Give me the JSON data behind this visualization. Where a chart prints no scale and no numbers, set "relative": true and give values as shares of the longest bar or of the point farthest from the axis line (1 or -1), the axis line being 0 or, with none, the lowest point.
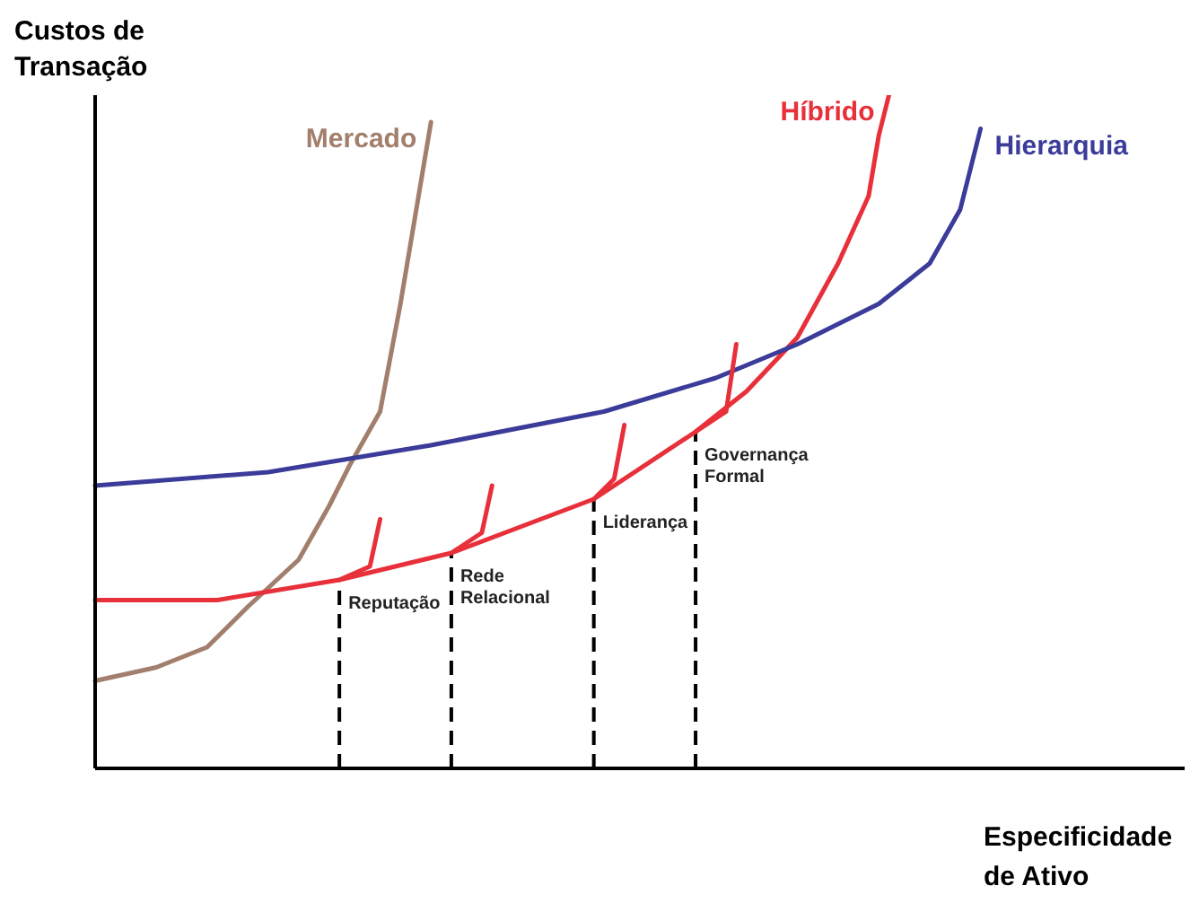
{
  "chart_data": {
    "type": "line",
    "relative": true,
    "xlabel": "Especificidade de Ativo",
    "ylabel": "Custos de Transação",
    "categories": [
      null,
      null,
      null,
      null,
      null,
      null,
      null,
      null,
      null,
      null,
      null,
      null,
      null,
      null,
      null,
      null,
      null,
      null,
      null,
      null,
      null,
      null,
      null,
      null,
      null,
      null,
      null,
      null,
      null,
      null,
      null,
      null,
      null,
      null,
      null,
      null,
      null,
      null,
      null,
      null,
      null,
      null,
      null,
      null,
      null,
      null,
      null,
      null,
      null,
      null,
      null,
      null,
      null,
      null,
      null,
      null,
      null,
      null,
      null,
      null,
      null,
      null,
      null,
      null,
      null,
      null,
      null,
      null,
      null,
      null,
      null,
      null,
      null,
      null,
      null,
      null,
      null,
      null,
      null,
      null,
      null,
      null,
      null,
      null,
      null,
      null,
      null,
      null,
      null,
      null,
      null,
      null,
      null,
      null,
      null,
      null,
      null,
      null,
      null,
      null,
      null
    ],
    "series": [
      {
        "name": "Mercado",
        "color": "#a27e6c",
        "values": [
          0.13,
          null,
          null,
          null,
          null,
          null,
          0.15,
          null,
          null,
          null,
          null,
          0.18,
          null,
          null,
          null,
          0.24,
          null,
          null,
          null,
          null,
          0.31,
          null,
          null,
          0.39,
          null,
          0.45,
          null,
          null,
          0.53,
          0.61,
          0.69,
          0.78,
          0.87,
          0.96,
          null,
          null,
          null,
          null,
          null,
          null,
          null,
          null,
          null,
          null,
          null,
          null,
          null,
          null,
          null,
          null,
          null,
          null,
          null,
          null,
          null,
          null,
          null,
          null,
          null,
          null,
          null,
          null,
          null,
          null,
          null,
          null,
          null,
          null,
          null,
          null,
          null,
          null,
          null,
          null,
          null,
          null,
          null,
          null,
          null,
          null,
          null,
          null,
          null,
          null,
          null,
          null,
          null,
          null,
          null,
          null,
          null,
          null,
          null,
          null,
          null,
          null,
          null,
          null,
          null,
          null,
          null
        ]
      },
      {
        "name": "Híbrido",
        "color": "#e8303a",
        "values": [
          0.25,
          null,
          null,
          null,
          null,
          null,
          null,
          null,
          null,
          null,
          null,
          null,
          0.25,
          null,
          null,
          null,
          null,
          null,
          null,
          null,
          null,
          null,
          null,
          null,
          0.28,
          null,
          null,
          null,
          null,
          null,
          null,
          null,
          null,
          null,
          null,
          0.32,
          null,
          null,
          null,
          null,
          null,
          null,
          null,
          null,
          null,
          null,
          null,
          null,
          null,
          0.4,
          null,
          null,
          null,
          null,
          null,
          null,
          null,
          null,
          null,
          0.5,
          null,
          null,
          null,
          null,
          0.56,
          null,
          null,
          null,
          null,
          0.64,
          null,
          null,
          null,
          0.75,
          null,
          null,
          0.85,
          0.94,
          1,
          null,
          null,
          null,
          null,
          null,
          null,
          null,
          null,
          null,
          null,
          null,
          null,
          null,
          null,
          null,
          null,
          null,
          null,
          null,
          null,
          null,
          null
        ]
      },
      {
        "name": "Hierarquia",
        "color": "#3b3b9a",
        "values": [
          0.42,
          null,
          null,
          null,
          null,
          null,
          null,
          null,
          null,
          null,
          null,
          null,
          null,
          null,
          null,
          null,
          null,
          0.44,
          null,
          null,
          null,
          null,
          null,
          null,
          null,
          null,
          null,
          null,
          null,
          null,
          null,
          null,
          null,
          0.48,
          null,
          null,
          null,
          null,
          null,
          null,
          null,
          null,
          null,
          null,
          null,
          null,
          null,
          null,
          null,
          null,
          0.53,
          null,
          null,
          null,
          null,
          null,
          null,
          null,
          null,
          null,
          null,
          0.58,
          null,
          null,
          null,
          null,
          null,
          null,
          null,
          0.63,
          null,
          null,
          null,
          null,
          null,
          null,
          null,
          0.69,
          null,
          null,
          null,
          null,
          0.75,
          null,
          null,
          0.83,
          null,
          0.95,
          null,
          null,
          null,
          null,
          null,
          null,
          null,
          null,
          null,
          null,
          null,
          null,
          null
        ]
      },
      {
        "color": "#e8303a",
        "values": [
          null,
          null,
          null,
          null,
          null,
          null,
          null,
          null,
          null,
          null,
          null,
          null,
          null,
          null,
          null,
          null,
          null,
          null,
          null,
          null,
          null,
          null,
          null,
          null,
          0.28,
          null,
          null,
          0.3,
          0.37,
          null,
          null,
          null,
          null,
          null,
          null,
          null,
          null,
          null,
          null,
          null,
          null,
          null,
          null,
          null,
          null,
          null,
          null,
          null,
          null,
          null,
          null,
          null,
          null,
          null,
          null,
          null,
          null,
          null,
          null,
          null,
          null,
          null,
          null,
          null,
          null,
          null,
          null,
          null,
          null,
          null,
          null,
          null,
          null,
          null,
          null,
          null,
          null,
          null,
          null,
          null,
          null,
          null,
          null,
          null,
          null,
          null,
          null,
          null,
          null,
          null,
          null,
          null,
          null,
          null,
          null,
          null,
          null,
          null,
          null,
          null,
          null
        ]
      },
      {
        "color": "#e8303a",
        "values": [
          null,
          null,
          null,
          null,
          null,
          null,
          null,
          null,
          null,
          null,
          null,
          null,
          null,
          null,
          null,
          null,
          null,
          null,
          null,
          null,
          null,
          null,
          null,
          null,
          null,
          null,
          null,
          null,
          null,
          null,
          null,
          null,
          null,
          null,
          null,
          0.32,
          null,
          null,
          0.35,
          0.42,
          null,
          null,
          null,
          null,
          null,
          null,
          null,
          null,
          null,
          null,
          null,
          null,
          null,
          null,
          null,
          null,
          null,
          null,
          null,
          null,
          null,
          null,
          null,
          null,
          null,
          null,
          null,
          null,
          null,
          null,
          null,
          null,
          null,
          null,
          null,
          null,
          null,
          null,
          null,
          null,
          null,
          null,
          null,
          null,
          null,
          null,
          null,
          null,
          null,
          null,
          null,
          null,
          null,
          null,
          null,
          null,
          null,
          null,
          null,
          null,
          null
        ]
      },
      {
        "color": "#e8303a",
        "values": [
          null,
          null,
          null,
          null,
          null,
          null,
          null,
          null,
          null,
          null,
          null,
          null,
          null,
          null,
          null,
          null,
          null,
          null,
          null,
          null,
          null,
          null,
          null,
          null,
          null,
          null,
          null,
          null,
          null,
          null,
          null,
          null,
          null,
          null,
          null,
          null,
          null,
          null,
          null,
          null,
          null,
          null,
          null,
          null,
          null,
          null,
          null,
          null,
          null,
          0.4,
          null,
          0.43,
          0.51,
          null,
          null,
          null,
          null,
          null,
          null,
          null,
          null,
          null,
          null,
          null,
          null,
          null,
          null,
          null,
          null,
          null,
          null,
          null,
          null,
          null,
          null,
          null,
          null,
          null,
          null,
          null,
          null,
          null,
          null,
          null,
          null,
          null,
          null,
          null,
          null,
          null,
          null,
          null,
          null,
          null,
          null,
          null,
          null,
          null,
          null,
          null,
          null
        ]
      },
      {
        "color": "#e8303a",
        "values": [
          null,
          null,
          null,
          null,
          null,
          null,
          null,
          null,
          null,
          null,
          null,
          null,
          null,
          null,
          null,
          null,
          null,
          null,
          null,
          null,
          null,
          null,
          null,
          null,
          null,
          null,
          null,
          null,
          null,
          null,
          null,
          null,
          null,
          null,
          null,
          null,
          null,
          null,
          null,
          null,
          null,
          null,
          null,
          null,
          null,
          null,
          null,
          null,
          null,
          null,
          null,
          null,
          null,
          null,
          null,
          null,
          null,
          null,
          null,
          0.5,
          null,
          null,
          0.53,
          0.63,
          null,
          null,
          null,
          null,
          null,
          null,
          null,
          null,
          null,
          null,
          null,
          null,
          null,
          null,
          null,
          null,
          null,
          null,
          null,
          null,
          null,
          null,
          null,
          null,
          null,
          null,
          null,
          null,
          null,
          null,
          null,
          null,
          null,
          null,
          null,
          null,
          null
        ]
      }
    ],
    "annotations": [
      "Reputação",
      "Rede Relacional",
      "Liderança",
      "Governança Formal"
    ]
  }
}
